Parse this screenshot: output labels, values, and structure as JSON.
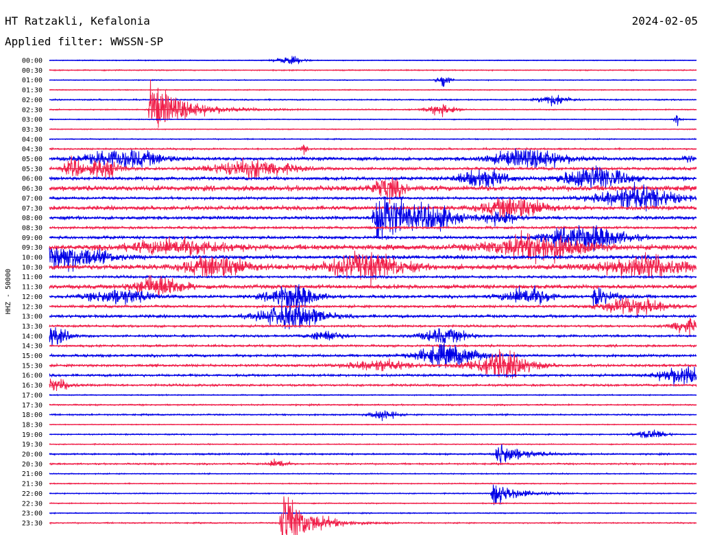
{
  "header": {
    "station": "HT Ratzakli, Kefalonia",
    "filter": "Applied filter: WWSSN-SP",
    "date": "2024-02-05"
  },
  "chart_data": {
    "type": "line",
    "ylabel": "HHZ - 50000",
    "colors": {
      "even": "#0000e6",
      "odd": "#f0204a"
    },
    "x_range_minutes": [
      0,
      30
    ],
    "rows": [
      {
        "label": "00:00",
        "noise": 0.45,
        "events": [
          {
            "t": 11.2,
            "a": 4,
            "d": 0.9,
            "type": "burst"
          }
        ]
      },
      {
        "label": "00:30",
        "noise": 0.6,
        "events": []
      },
      {
        "label": "01:00",
        "noise": 0.5,
        "events": [
          {
            "t": 18.3,
            "a": 12,
            "d": 0.5,
            "type": "spike"
          }
        ]
      },
      {
        "label": "01:30",
        "noise": 0.5,
        "events": []
      },
      {
        "label": "02:00",
        "noise": 0.7,
        "events": [
          {
            "t": 23.4,
            "a": 6,
            "d": 1.0,
            "type": "burst"
          }
        ]
      },
      {
        "label": "02:30",
        "noise": 0.6,
        "events": [
          {
            "t": 4.7,
            "a": 30,
            "d": 2.5,
            "type": "quake"
          },
          {
            "t": 18.2,
            "a": 6,
            "d": 1.0,
            "type": "burst"
          }
        ]
      },
      {
        "label": "03:00",
        "noise": 0.5,
        "events": [
          {
            "t": 29.1,
            "a": 10,
            "d": 0.3,
            "type": "spike"
          }
        ]
      },
      {
        "label": "03:30",
        "noise": 0.5,
        "events": []
      },
      {
        "label": "04:00",
        "noise": 0.6,
        "events": []
      },
      {
        "label": "04:30",
        "noise": 0.9,
        "events": [
          {
            "t": 11.8,
            "a": 6,
            "d": 0.4,
            "type": "spike"
          }
        ]
      },
      {
        "label": "05:00",
        "noise": 1.8,
        "events": [
          {
            "t": 3.5,
            "a": 10,
            "d": 2.5,
            "type": "burst"
          },
          {
            "t": 22.3,
            "a": 10,
            "d": 2.5,
            "type": "burst"
          },
          {
            "t": 29.6,
            "a": 6,
            "d": 0.5,
            "type": "spike"
          }
        ]
      },
      {
        "label": "05:30",
        "noise": 1.6,
        "events": [
          {
            "t": 1.1,
            "a": 10,
            "d": 0.6,
            "type": "burst"
          },
          {
            "t": 2.5,
            "a": 10,
            "d": 1.0,
            "type": "burst"
          },
          {
            "t": 9.4,
            "a": 10,
            "d": 2.5,
            "type": "burst"
          }
        ]
      },
      {
        "label": "06:00",
        "noise": 1.8,
        "events": [
          {
            "t": 20.1,
            "a": 10,
            "d": 1.5,
            "type": "burst"
          },
          {
            "t": 25.3,
            "a": 14,
            "d": 2.0,
            "type": "burst"
          }
        ]
      },
      {
        "label": "06:30",
        "noise": 2.8,
        "events": [
          {
            "t": 15.7,
            "a": 12,
            "d": 1.0,
            "type": "burst"
          }
        ]
      },
      {
        "label": "07:00",
        "noise": 1.4,
        "events": [
          {
            "t": 27.2,
            "a": 14,
            "d": 2.5,
            "type": "burst"
          }
        ]
      },
      {
        "label": "07:30",
        "noise": 2.2,
        "events": [
          {
            "t": 21.6,
            "a": 12,
            "d": 2.0,
            "type": "burst"
          }
        ]
      },
      {
        "label": "08:00",
        "noise": 1.8,
        "events": [
          {
            "t": 15.1,
            "a": 40,
            "d": 2.5,
            "type": "quake"
          },
          {
            "t": 18.0,
            "a": 8,
            "d": 1.0,
            "type": "burst"
          },
          {
            "t": 21.0,
            "a": 6,
            "d": 1.0,
            "type": "burst"
          }
        ]
      },
      {
        "label": "08:30",
        "noise": 1.4,
        "events": []
      },
      {
        "label": "09:00",
        "noise": 1.6,
        "events": [
          {
            "t": 24.9,
            "a": 14,
            "d": 2.5,
            "type": "burst"
          }
        ]
      },
      {
        "label": "09:30",
        "noise": 2.8,
        "events": [
          {
            "t": 6.0,
            "a": 8,
            "d": 3.0,
            "type": "burst"
          },
          {
            "t": 22.6,
            "a": 14,
            "d": 3.0,
            "type": "burst"
          }
        ]
      },
      {
        "label": "10:00",
        "noise": 2.0,
        "events": [
          {
            "t": 0.4,
            "a": 14,
            "d": 3.0,
            "type": "burst"
          }
        ]
      },
      {
        "label": "10:30",
        "noise": 2.8,
        "events": [
          {
            "t": 7.8,
            "a": 12,
            "d": 2.0,
            "type": "burst"
          },
          {
            "t": 14.7,
            "a": 14,
            "d": 2.5,
            "type": "burst"
          },
          {
            "t": 27.5,
            "a": 12,
            "d": 2.5,
            "type": "burst"
          }
        ]
      },
      {
        "label": "11:00",
        "noise": 1.3,
        "events": []
      },
      {
        "label": "11:30",
        "noise": 2.2,
        "events": [
          {
            "t": 5.1,
            "a": 12,
            "d": 1.5,
            "type": "burst"
          }
        ]
      },
      {
        "label": "12:00",
        "noise": 1.6,
        "events": [
          {
            "t": 3.3,
            "a": 8,
            "d": 2.0,
            "type": "burst"
          },
          {
            "t": 11.3,
            "a": 14,
            "d": 1.5,
            "type": "burst"
          },
          {
            "t": 22.2,
            "a": 10,
            "d": 1.5,
            "type": "burst"
          },
          {
            "t": 25.3,
            "a": 14,
            "d": 1.0,
            "type": "quake"
          }
        ]
      },
      {
        "label": "12:30",
        "noise": 1.4,
        "events": [
          {
            "t": 27.2,
            "a": 10,
            "d": 2.0,
            "type": "burst"
          }
        ]
      },
      {
        "label": "13:00",
        "noise": 1.6,
        "events": [
          {
            "t": 11.3,
            "a": 14,
            "d": 2.0,
            "type": "burst"
          }
        ]
      },
      {
        "label": "13:30",
        "noise": 1.2,
        "events": [
          {
            "t": 29.5,
            "a": 8,
            "d": 1.0,
            "type": "burst"
          }
        ]
      },
      {
        "label": "14:00",
        "noise": 1.2,
        "events": [
          {
            "t": 0.2,
            "a": 10,
            "d": 1.0,
            "type": "burst"
          },
          {
            "t": 12.8,
            "a": 6,
            "d": 1.0,
            "type": "burst"
          },
          {
            "t": 18.3,
            "a": 8,
            "d": 1.5,
            "type": "burst"
          }
        ]
      },
      {
        "label": "14:30",
        "noise": 1.2,
        "events": []
      },
      {
        "label": "15:00",
        "noise": 1.4,
        "events": [
          {
            "t": 18.5,
            "a": 12,
            "d": 2.0,
            "type": "burst"
          }
        ]
      },
      {
        "label": "15:30",
        "noise": 1.4,
        "events": [
          {
            "t": 15.2,
            "a": 6,
            "d": 2.0,
            "type": "burst"
          },
          {
            "t": 21.0,
            "a": 14,
            "d": 2.0,
            "type": "burst"
          }
        ]
      },
      {
        "label": "16:00",
        "noise": 1.3,
        "events": [
          {
            "t": 29.4,
            "a": 12,
            "d": 1.5,
            "type": "burst"
          }
        ]
      },
      {
        "label": "16:30",
        "noise": 1.2,
        "events": [
          {
            "t": 0.3,
            "a": 6,
            "d": 1.0,
            "type": "burst"
          }
        ]
      },
      {
        "label": "17:00",
        "noise": 0.6,
        "events": []
      },
      {
        "label": "17:30",
        "noise": 0.8,
        "events": []
      },
      {
        "label": "18:00",
        "noise": 0.8,
        "events": [
          {
            "t": 15.5,
            "a": 6,
            "d": 0.8,
            "type": "burst"
          }
        ]
      },
      {
        "label": "18:30",
        "noise": 0.5,
        "events": []
      },
      {
        "label": "19:00",
        "noise": 0.7,
        "events": [
          {
            "t": 27.9,
            "a": 5,
            "d": 1.0,
            "type": "burst"
          }
        ]
      },
      {
        "label": "19:30",
        "noise": 0.6,
        "events": []
      },
      {
        "label": "20:00",
        "noise": 0.9,
        "events": [
          {
            "t": 20.8,
            "a": 16,
            "d": 1.5,
            "type": "quake"
          }
        ]
      },
      {
        "label": "20:30",
        "noise": 0.9,
        "events": [
          {
            "t": 10.6,
            "a": 5,
            "d": 0.6,
            "type": "burst"
          }
        ]
      },
      {
        "label": "21:00",
        "noise": 0.6,
        "events": []
      },
      {
        "label": "21:30",
        "noise": 0.6,
        "events": []
      },
      {
        "label": "22:00",
        "noise": 0.6,
        "events": [
          {
            "t": 20.6,
            "a": 16,
            "d": 1.5,
            "type": "quake"
          }
        ]
      },
      {
        "label": "22:30",
        "noise": 0.6,
        "events": []
      },
      {
        "label": "23:00",
        "noise": 0.6,
        "events": []
      },
      {
        "label": "23:30",
        "noise": 0.7,
        "events": [
          {
            "t": 10.8,
            "a": 40,
            "d": 1.8,
            "type": "quake"
          }
        ]
      }
    ]
  }
}
